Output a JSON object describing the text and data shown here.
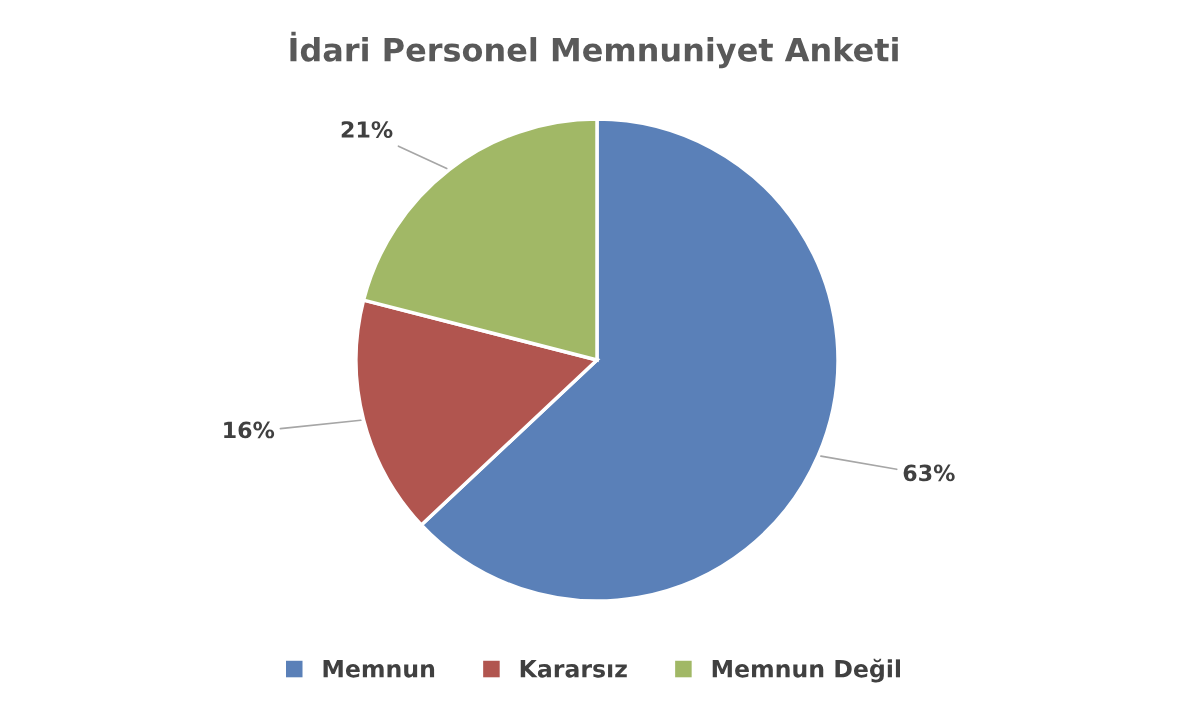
{
  "chart_data": {
    "type": "pie",
    "title": "İdari Personel Memnuniyet Anketi",
    "categories": [
      "Memnun",
      "Kararsız",
      "Memnun Değil"
    ],
    "values": [
      63,
      16,
      21
    ],
    "colors": [
      "#5a80b8",
      "#b1554f",
      "#a1b866"
    ],
    "value_labels": [
      "63%",
      "16%",
      "21%"
    ],
    "legend": "bottom"
  }
}
